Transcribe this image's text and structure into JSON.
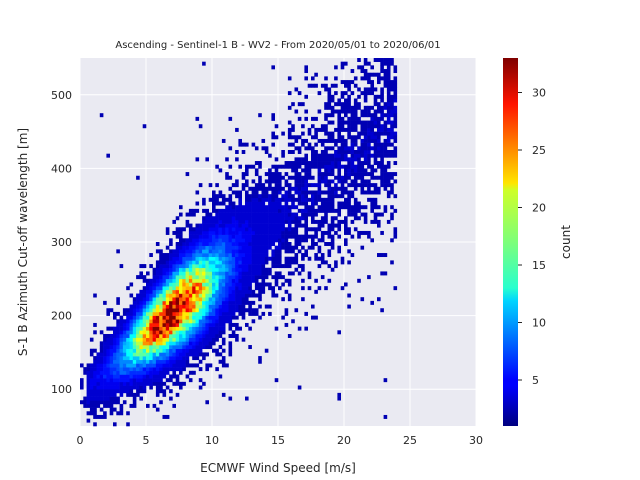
{
  "chart_data": {
    "type": "heatmap",
    "title": "Ascending - Sentinel-1 B - WV2 - From 2020/05/01 to 2020/06/01",
    "xlabel": "ECMWF Wind Speed [m/s]",
    "ylabel": "S-1 B Azimuth Cut-off wavelength [m]",
    "xlim": [
      0,
      30
    ],
    "ylim": [
      50,
      550
    ],
    "xticks": [
      0,
      5,
      10,
      15,
      20,
      25,
      30
    ],
    "yticks": [
      100,
      200,
      300,
      400,
      500
    ],
    "grid": true,
    "colorbar": {
      "label": "count",
      "range": [
        1,
        33
      ],
      "ticks": [
        5,
        10,
        15,
        20,
        25,
        30
      ],
      "colormap": "jet"
    },
    "density_model": {
      "bin_width_x": 0.25,
      "bin_width_y": 5,
      "trend": {
        "slope": 15.6,
        "intercept": 95
      },
      "core_x_range": [
        1,
        20
      ],
      "peak_count": 33,
      "peak_at": {
        "x": 7,
        "y": 215
      }
    }
  }
}
